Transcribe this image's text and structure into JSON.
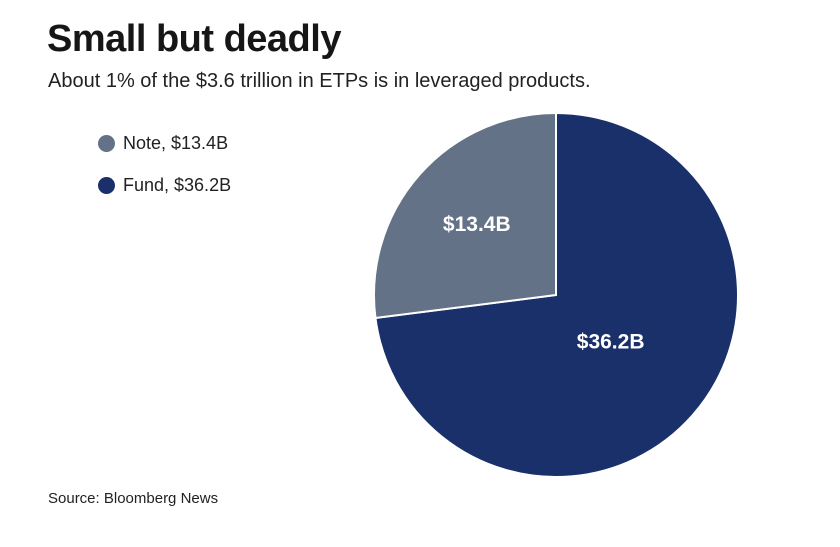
{
  "header": {
    "title": "Small but deadly",
    "subtitle": "About 1% of the $3.6 trillion in ETPs is in leveraged products."
  },
  "legend": {
    "items": [
      {
        "label": "Note, $13.4B",
        "color": "#637286"
      },
      {
        "label": "Fund, $36.2B",
        "color": "#19306a"
      }
    ]
  },
  "footer": {
    "source": "Source: Bloomberg News"
  },
  "chart_data": {
    "type": "pie",
    "title": "Small but deadly",
    "subtitle": "About 1% of the $3.6 trillion in ETPs is in leveraged products.",
    "unit": "$B",
    "slices": [
      {
        "name": "Fund",
        "value": 36.2,
        "label": "$36.2B",
        "color": "#19306a"
      },
      {
        "name": "Note",
        "value": 13.4,
        "label": "$13.4B",
        "color": "#637286"
      }
    ],
    "start_angle": "12 o'clock",
    "direction": "clockwise",
    "legend_position": "top-left"
  }
}
